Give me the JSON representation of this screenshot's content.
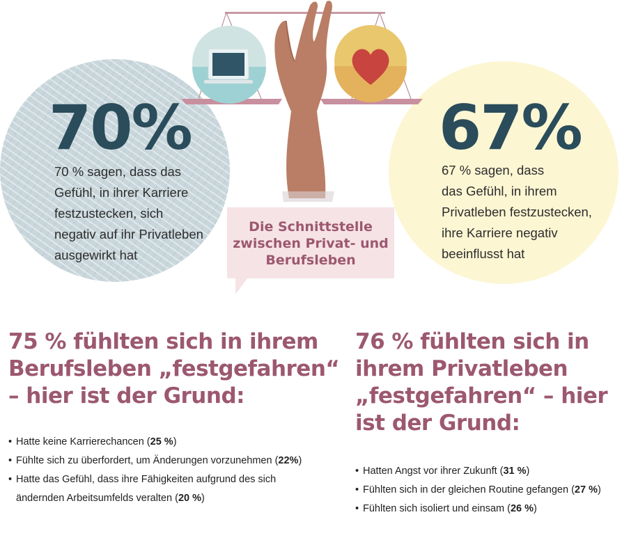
{
  "colors": {
    "primary_dark": "#2a4c5b",
    "accent": "#9c5870",
    "left_circle": "#c9d7dc",
    "right_circle": "#fcf6d3",
    "bubble": "#f6e3e6"
  },
  "left": {
    "big_percent": "70%",
    "text_lines": [
      "70 % sagen, dass das",
      "Gefühl, in ihrer Karriere",
      "festzustecken, sich",
      "negativ auf ihr Privatleben",
      "ausgewirkt hat"
    ]
  },
  "right": {
    "big_percent": "67%",
    "text_lines": [
      "67 % sagen, dass",
      "das Gefühl, in ihrem",
      "Privatleben festzustecken,",
      "ihre Karriere negativ",
      "beeinflusst hat"
    ]
  },
  "bubble": {
    "lines": [
      "Die Schnittstelle",
      "zwischen Privat- und",
      "Berufsleben"
    ]
  },
  "illustration": {
    "icons": [
      "scale-icon",
      "hand-icon",
      "laptop-icon",
      "heart-icon"
    ]
  },
  "career": {
    "heading_lines": [
      "75 % fühlten sich in ihrem",
      "Berufsleben „festgefahren“",
      "– hier ist der Grund:"
    ],
    "items": [
      {
        "text": "Hatte keine Karrierechancen (",
        "pct": "25 %",
        "end": ")"
      },
      {
        "text": "Fühlte sich zu überfordert, um Änderungen vorzunehmen (",
        "pct": "22%",
        "end": ")"
      },
      {
        "text": "Hatte das Gefühl, dass ihre Fähigkeiten aufgrund des sich",
        "text2": "ändernden Arbeitsumfelds veralten (",
        "pct": "20 %",
        "end": ")"
      }
    ]
  },
  "private": {
    "heading_lines": [
      "76 % fühlten sich in",
      "ihrem Privatleben",
      "„festgefahren“ – hier",
      "ist der Grund:"
    ],
    "items": [
      {
        "text": "Hatten Angst vor ihrer Zukunft (",
        "pct": "31 %",
        "end": ")"
      },
      {
        "text": "Fühlten sich in der gleichen Routine gefangen (",
        "pct": "27 %",
        "end": ")"
      },
      {
        "text": "Fühlten sich isoliert und einsam (",
        "pct": "26 %",
        "end": ")"
      }
    ]
  }
}
